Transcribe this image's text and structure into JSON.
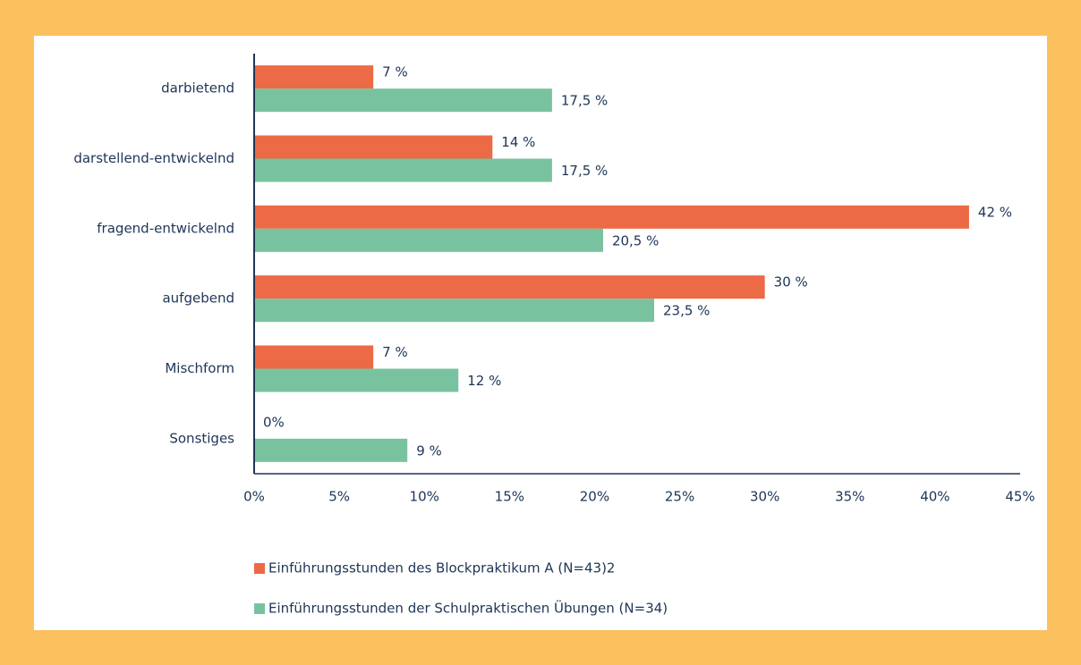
{
  "chart_data": {
    "type": "hbar",
    "categories": [
      "darbietend",
      "darstellend-entwickelnd",
      "fragend-entwickelnd",
      "aufgebend",
      "Mischform",
      "Sonstiges"
    ],
    "series": [
      {
        "name": "Einführungsstunden des Blockpraktikum A (N=43)2",
        "color": "#ec6a45",
        "values": [
          7,
          14,
          42,
          30,
          7,
          0
        ],
        "value_labels": [
          "7 %",
          "14 %",
          "42 %",
          "30 %",
          "7 %",
          "0%"
        ]
      },
      {
        "name": "Einführungsstunden der Schulpraktischen Übungen (N=34)",
        "color": "#79c2a0",
        "values": [
          17.5,
          17.5,
          20.5,
          23.5,
          12,
          9
        ],
        "value_labels": [
          "17,5 %",
          "17,5 %",
          "20,5 %",
          "23,5 %",
          "12 %",
          "9 %"
        ]
      }
    ],
    "xlim": [
      0,
      45
    ],
    "xticks": [
      {
        "value": 0,
        "label": "0%"
      },
      {
        "value": 5,
        "label": "5%"
      },
      {
        "value": 10,
        "label": "10%"
      },
      {
        "value": 15,
        "label": "15%"
      },
      {
        "value": 20,
        "label": "20%"
      },
      {
        "value": 25,
        "label": "25%"
      },
      {
        "value": 30,
        "label": "30%"
      },
      {
        "value": 35,
        "label": "35%"
      },
      {
        "value": 40,
        "label": "40%"
      },
      {
        "value": 45,
        "label": "45%"
      }
    ],
    "legend": "bottom"
  }
}
